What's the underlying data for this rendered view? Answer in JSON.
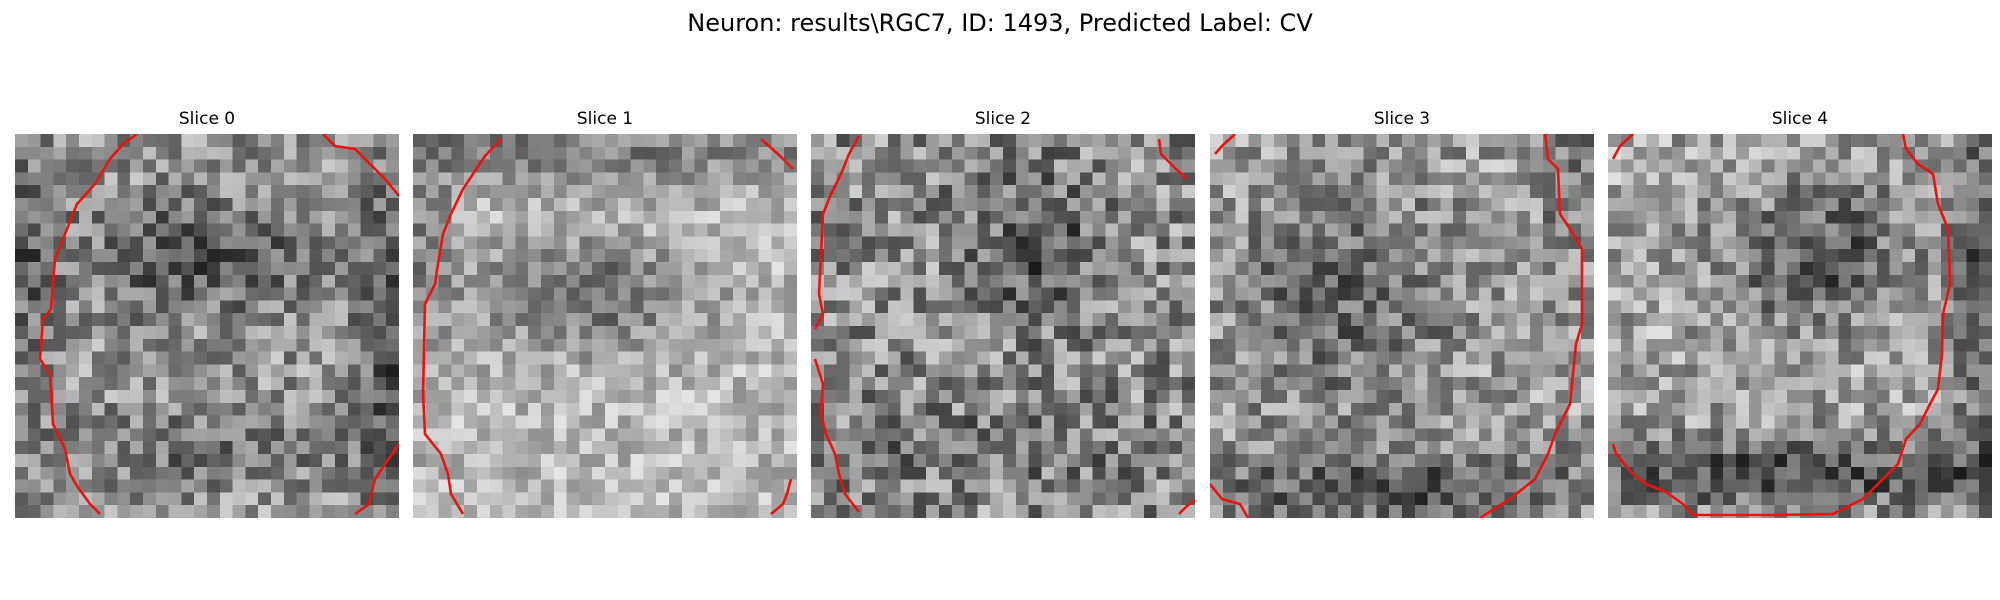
{
  "figure": {
    "title": "Neuron: results\\RGC7, ID: 1493, Predicted Label: CV"
  },
  "panels": [
    {
      "title": "Slice 0"
    },
    {
      "title": "Slice 1"
    },
    {
      "title": "Slice 2"
    },
    {
      "title": "Slice 3"
    },
    {
      "title": "Slice 4"
    }
  ],
  "colors": {
    "contour": "#ee1111",
    "colormap": "gray"
  }
}
